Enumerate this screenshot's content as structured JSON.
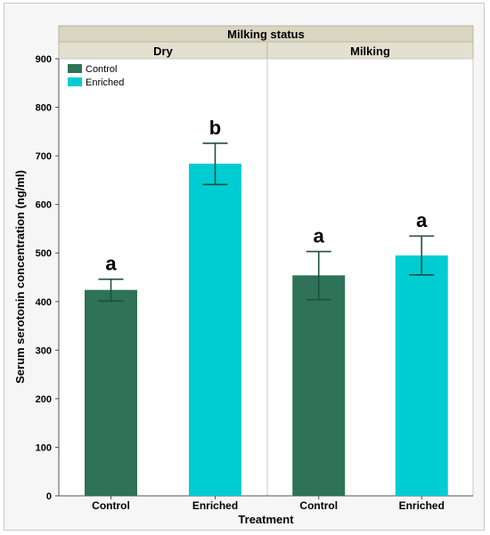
{
  "chart_data": {
    "type": "bar",
    "title": "Milking status",
    "panels": [
      "Dry",
      "Milking"
    ],
    "categories": [
      "Control",
      "Enriched"
    ],
    "xlabel": "Treatment",
    "ylabel": "Serum serotonin concentration (ng/ml)",
    "ylim": [
      0,
      900
    ],
    "yticks": [
      0,
      100,
      200,
      300,
      400,
      500,
      600,
      700,
      800,
      900
    ],
    "legend": {
      "placement": "top-left",
      "entries": [
        {
          "name": "Control",
          "color": "#2e7257"
        },
        {
          "name": "Enriched",
          "color": "#00cdd2"
        }
      ]
    },
    "series": [
      {
        "name": "Control",
        "color": "#2e7257",
        "values": [
          424,
          454
        ],
        "error_low": [
          401,
          404
        ],
        "error_high": [
          446,
          503
        ],
        "letters": [
          "a",
          "a"
        ]
      },
      {
        "name": "Enriched",
        "color": "#00cdd2",
        "values": [
          684,
          495
        ],
        "error_low": [
          641,
          455
        ],
        "error_high": [
          726,
          535
        ],
        "letters": [
          "b",
          "a"
        ]
      }
    ],
    "grid": false
  },
  "colors": {
    "strip": "#d8d5c0",
    "panel_bg": "#ffffff",
    "error_bar": "#1f4f45"
  }
}
